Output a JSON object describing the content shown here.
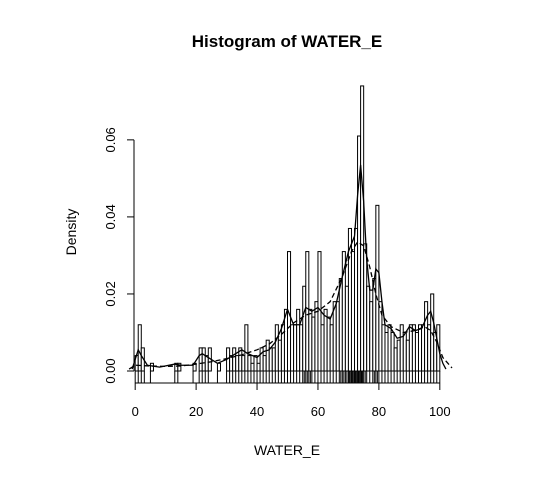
{
  "chart_data": {
    "type": "bar",
    "title": "Histogram of WATER_E",
    "xlabel": "WATER_E",
    "ylabel": "Density",
    "xlim": [
      -4,
      104
    ],
    "ylim": [
      0,
      0.0745
    ],
    "bin_width": 1,
    "x_ticks": [
      0,
      20,
      40,
      60,
      80,
      100
    ],
    "x_tick_labels": [
      "0",
      "20",
      "40",
      "60",
      "80",
      "100"
    ],
    "y_ticks": [
      0.0,
      0.02,
      0.04,
      0.06
    ],
    "y_tick_labels": [
      "0.00",
      "0.02",
      "0.04",
      "0.06"
    ],
    "bins": [
      {
        "x": 0,
        "density": 0.004
      },
      {
        "x": 1,
        "density": 0.012
      },
      {
        "x": 2,
        "density": 0.006
      },
      {
        "x": 5,
        "density": 0.002
      },
      {
        "x": 13,
        "density": 0.002
      },
      {
        "x": 14,
        "density": 0.002
      },
      {
        "x": 19,
        "density": 0.002
      },
      {
        "x": 21,
        "density": 0.006
      },
      {
        "x": 22,
        "density": 0.006
      },
      {
        "x": 23,
        "density": 0.004
      },
      {
        "x": 24,
        "density": 0.006
      },
      {
        "x": 27,
        "density": 0.002
      },
      {
        "x": 30,
        "density": 0.006
      },
      {
        "x": 31,
        "density": 0.004
      },
      {
        "x": 32,
        "density": 0.006
      },
      {
        "x": 33,
        "density": 0.004
      },
      {
        "x": 34,
        "density": 0.006
      },
      {
        "x": 35,
        "density": 0.004
      },
      {
        "x": 36,
        "density": 0.012
      },
      {
        "x": 37,
        "density": 0.004
      },
      {
        "x": 38,
        "density": 0.002
      },
      {
        "x": 39,
        "density": 0.004
      },
      {
        "x": 40,
        "density": 0.002
      },
      {
        "x": 41,
        "density": 0.006
      },
      {
        "x": 42,
        "density": 0.004
      },
      {
        "x": 43,
        "density": 0.008
      },
      {
        "x": 44,
        "density": 0.006
      },
      {
        "x": 45,
        "density": 0.006
      },
      {
        "x": 46,
        "density": 0.012
      },
      {
        "x": 47,
        "density": 0.008
      },
      {
        "x": 48,
        "density": 0.012
      },
      {
        "x": 49,
        "density": 0.016
      },
      {
        "x": 50,
        "density": 0.031
      },
      {
        "x": 51,
        "density": 0.012
      },
      {
        "x": 52,
        "density": 0.012
      },
      {
        "x": 53,
        "density": 0.016
      },
      {
        "x": 54,
        "density": 0.012
      },
      {
        "x": 55,
        "density": 0.022
      },
      {
        "x": 56,
        "density": 0.031
      },
      {
        "x": 57,
        "density": 0.016
      },
      {
        "x": 58,
        "density": 0.014
      },
      {
        "x": 59,
        "density": 0.018
      },
      {
        "x": 60,
        "density": 0.031
      },
      {
        "x": 61,
        "density": 0.012
      },
      {
        "x": 62,
        "density": 0.016
      },
      {
        "x": 63,
        "density": 0.014
      },
      {
        "x": 64,
        "density": 0.012
      },
      {
        "x": 65,
        "density": 0.018
      },
      {
        "x": 66,
        "density": 0.018
      },
      {
        "x": 67,
        "density": 0.024
      },
      {
        "x": 68,
        "density": 0.031
      },
      {
        "x": 69,
        "density": 0.022
      },
      {
        "x": 70,
        "density": 0.037
      },
      {
        "x": 71,
        "density": 0.031
      },
      {
        "x": 72,
        "density": 0.037
      },
      {
        "x": 73,
        "density": 0.061
      },
      {
        "x": 74,
        "density": 0.074
      },
      {
        "x": 75,
        "density": 0.033
      },
      {
        "x": 76,
        "density": 0.022
      },
      {
        "x": 77,
        "density": 0.018
      },
      {
        "x": 78,
        "density": 0.024
      },
      {
        "x": 79,
        "density": 0.043
      },
      {
        "x": 80,
        "density": 0.018
      },
      {
        "x": 81,
        "density": 0.012
      },
      {
        "x": 82,
        "density": 0.01
      },
      {
        "x": 83,
        "density": 0.012
      },
      {
        "x": 84,
        "density": 0.01
      },
      {
        "x": 85,
        "density": 0.006
      },
      {
        "x": 86,
        "density": 0.008
      },
      {
        "x": 87,
        "density": 0.012
      },
      {
        "x": 88,
        "density": 0.01
      },
      {
        "x": 89,
        "density": 0.008
      },
      {
        "x": 90,
        "density": 0.012
      },
      {
        "x": 91,
        "density": 0.012
      },
      {
        "x": 92,
        "density": 0.01
      },
      {
        "x": 93,
        "density": 0.012
      },
      {
        "x": 94,
        "density": 0.012
      },
      {
        "x": 95,
        "density": 0.018
      },
      {
        "x": 96,
        "density": 0.012
      },
      {
        "x": 97,
        "density": 0.02
      },
      {
        "x": 98,
        "density": 0.01
      },
      {
        "x": 99,
        "density": 0.012
      }
    ],
    "density_curves": [
      {
        "style": "solid",
        "points": [
          [
            -1,
            0.0005
          ],
          [
            0,
            0.003
          ],
          [
            1,
            0.0055
          ],
          [
            2,
            0.004
          ],
          [
            4,
            0.0015
          ],
          [
            8,
            0.001
          ],
          [
            13,
            0.0018
          ],
          [
            15,
            0.0015
          ],
          [
            19,
            0.0015
          ],
          [
            21,
            0.004
          ],
          [
            22,
            0.0045
          ],
          [
            24,
            0.0035
          ],
          [
            27,
            0.002
          ],
          [
            30,
            0.003
          ],
          [
            32,
            0.004
          ],
          [
            35,
            0.0055
          ],
          [
            37,
            0.0045
          ],
          [
            40,
            0.0035
          ],
          [
            42,
            0.005
          ],
          [
            44,
            0.0055
          ],
          [
            46,
            0.0075
          ],
          [
            48,
            0.011
          ],
          [
            50,
            0.016
          ],
          [
            52,
            0.012
          ],
          [
            54,
            0.012
          ],
          [
            56,
            0.0165
          ],
          [
            58,
            0.0155
          ],
          [
            60,
            0.0165
          ],
          [
            62,
            0.0145
          ],
          [
            64,
            0.0135
          ],
          [
            66,
            0.0175
          ],
          [
            68,
            0.0245
          ],
          [
            70,
            0.031
          ],
          [
            72,
            0.035
          ],
          [
            73,
            0.0455
          ],
          [
            74,
            0.0535
          ],
          [
            75,
            0.044
          ],
          [
            76,
            0.029
          ],
          [
            77,
            0.021
          ],
          [
            78,
            0.021
          ],
          [
            79,
            0.0265
          ],
          [
            80,
            0.0255
          ],
          [
            81,
            0.018
          ],
          [
            82,
            0.012
          ],
          [
            84,
            0.011
          ],
          [
            86,
            0.0085
          ],
          [
            88,
            0.009
          ],
          [
            90,
            0.0115
          ],
          [
            92,
            0.0105
          ],
          [
            94,
            0.011
          ],
          [
            96,
            0.0145
          ],
          [
            97,
            0.0155
          ],
          [
            98,
            0.0125
          ],
          [
            99,
            0.0085
          ],
          [
            100,
            0.0045
          ],
          [
            101,
            0.002
          ],
          [
            102,
            0.0005
          ]
        ]
      },
      {
        "style": "dashed",
        "points": [
          [
            -2,
            0.0005
          ],
          [
            0,
            0.0015
          ],
          [
            5,
            0.0013
          ],
          [
            10,
            0.0012
          ],
          [
            15,
            0.0013
          ],
          [
            20,
            0.0018
          ],
          [
            25,
            0.0024
          ],
          [
            30,
            0.0032
          ],
          [
            35,
            0.0042
          ],
          [
            40,
            0.0055
          ],
          [
            44,
            0.007
          ],
          [
            48,
            0.0095
          ],
          [
            52,
            0.0125
          ],
          [
            56,
            0.0145
          ],
          [
            60,
            0.0155
          ],
          [
            64,
            0.018
          ],
          [
            68,
            0.0245
          ],
          [
            71,
            0.031
          ],
          [
            73,
            0.0335
          ],
          [
            75,
            0.0325
          ],
          [
            77,
            0.027
          ],
          [
            79,
            0.02
          ],
          [
            81,
            0.0145
          ],
          [
            84,
            0.0115
          ],
          [
            88,
            0.01
          ],
          [
            92,
            0.0105
          ],
          [
            95,
            0.0115
          ],
          [
            97,
            0.0105
          ],
          [
            99,
            0.0075
          ],
          [
            101,
            0.0035
          ],
          [
            104,
            0.0008
          ]
        ]
      }
    ],
    "rug": [
      0,
      1,
      2,
      3,
      5,
      13,
      14,
      19,
      21,
      22,
      23,
      24,
      27,
      30,
      31,
      32,
      33,
      34,
      35,
      36,
      37,
      38,
      39,
      40,
      41,
      42,
      43,
      44,
      45,
      46,
      47,
      48,
      49,
      50,
      51,
      52,
      53,
      54,
      55,
      55.5,
      56,
      56.5,
      57,
      57.5,
      58,
      59,
      60,
      61,
      62,
      63,
      64,
      65,
      66,
      67,
      67.5,
      68,
      68.5,
      69,
      69.5,
      70,
      70.3,
      70.6,
      71,
      71.3,
      71.6,
      72,
      72.3,
      72.6,
      73,
      73.3,
      73.6,
      74,
      74.3,
      74.6,
      75,
      75.5,
      76,
      77,
      78,
      78.5,
      79,
      79.5,
      80,
      81,
      82,
      83,
      84,
      85,
      86,
      87,
      88,
      89,
      90,
      91,
      92,
      93,
      94,
      95,
      96,
      97,
      98,
      99,
      100
    ]
  }
}
